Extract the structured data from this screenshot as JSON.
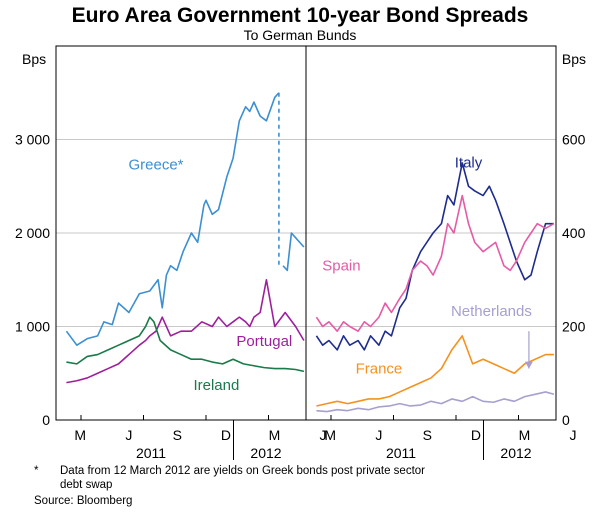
{
  "chart_data": {
    "title": "Euro Area Government 10-year Bond Spreads",
    "subtitle": "To German Bunds",
    "footnote_marker": "*",
    "footnote_line1": "Data from 12 March 2012 are yields on Greek bonds post private sector",
    "footnote_line2": "debt swap",
    "source": "Source: Bloomberg",
    "x_months": [
      "M",
      "J",
      "S",
      "D",
      "M",
      "J"
    ],
    "x_years": [
      "2011",
      "2012"
    ],
    "panels": [
      {
        "type": "line",
        "unit": "Bps",
        "ylim": [
          0,
          4000
        ],
        "yticks": [
          0,
          1000,
          2000,
          3000
        ],
        "ytick_labels": [
          "0",
          "1 000",
          "2 000",
          "3 000"
        ],
        "series": [
          {
            "name": "Greece*",
            "color": "#3c8fd2",
            "dash_after_x": 12.2,
            "dash_end_x": 12.4,
            "x": [
              2.0,
              2.5,
              3.0,
              3.5,
              3.8,
              4.2,
              4.5,
              5.0,
              5.5,
              6.0,
              6.4,
              6.6,
              6.8,
              7.0,
              7.3,
              7.6,
              8.0,
              8.3,
              8.6,
              8.7,
              9.0,
              9.3,
              9.7,
              10.0,
              10.3,
              10.6,
              10.8,
              11.0,
              11.3,
              11.6,
              12.0,
              12.2,
              12.4,
              12.6,
              12.8,
              13.0,
              13.2,
              13.4
            ],
            "y": [
              950,
              800,
              870,
              900,
              1050,
              1020,
              1250,
              1150,
              1350,
              1380,
              1500,
              1200,
              1550,
              1650,
              1600,
              1800,
              2000,
              1900,
              2300,
              2350,
              2200,
              2250,
              2600,
              2800,
              3200,
              3350,
              3300,
              3400,
              3250,
              3200,
              3450,
              3500,
              1650,
              1600,
              2000,
              1950,
              1900,
              1850
            ]
          },
          {
            "name": "Portugal",
            "color": "#9e1f9c",
            "x": [
              2.0,
              2.5,
              3.0,
              3.5,
              4.0,
              4.5,
              5.0,
              5.5,
              5.8,
              6.0,
              6.3,
              6.6,
              7.0,
              7.5,
              8.0,
              8.5,
              9.0,
              9.3,
              9.7,
              10.0,
              10.3,
              10.6,
              10.8,
              11.0,
              11.3,
              11.6,
              12.0,
              12.5,
              13.0,
              13.4
            ],
            "y": [
              400,
              420,
              450,
              500,
              550,
              600,
              700,
              800,
              850,
              900,
              950,
              1100,
              900,
              950,
              950,
              1050,
              1000,
              1100,
              1000,
              1050,
              1100,
              1050,
              1000,
              1100,
              1150,
              1500,
              1000,
              1150,
              1000,
              850
            ]
          },
          {
            "name": "Ireland",
            "color": "#1a7a4a",
            "x": [
              2.0,
              2.5,
              3.0,
              3.5,
              4.0,
              4.5,
              5.0,
              5.5,
              5.8,
              6.0,
              6.2,
              6.5,
              7.0,
              7.5,
              8.0,
              8.5,
              9.0,
              9.5,
              10.0,
              10.5,
              11.0,
              11.5,
              12.0,
              12.5,
              13.0,
              13.4
            ],
            "y": [
              620,
              600,
              680,
              700,
              750,
              800,
              850,
              900,
              1000,
              1100,
              1050,
              850,
              750,
              700,
              650,
              650,
              620,
              600,
              650,
              600,
              580,
              560,
              550,
              550,
              540,
              520
            ]
          }
        ],
        "labels": [
          {
            "text": "Greece*",
            "color": "#3c8fd2",
            "x": 6.3,
            "y": 2680
          },
          {
            "text": "Portugal",
            "color": "#9e1f9c",
            "x": 11.5,
            "y": 790
          },
          {
            "text": "Ireland",
            "color": "#1a7a4a",
            "x": 9.2,
            "y": 320
          }
        ]
      },
      {
        "type": "line",
        "unit": "Bps",
        "ylim": [
          0,
          800
        ],
        "yticks": [
          0,
          200,
          400,
          600
        ],
        "ytick_labels": [
          "0",
          "200",
          "400",
          "600"
        ],
        "series": [
          {
            "name": "Italy",
            "color": "#1d2c8e",
            "x": [
              2.0,
              2.3,
              2.6,
              3.0,
              3.3,
              3.6,
              4.0,
              4.3,
              4.6,
              5.0,
              5.3,
              5.6,
              6.0,
              6.3,
              6.6,
              7.0,
              7.3,
              7.6,
              8.0,
              8.3,
              8.6,
              9.0,
              9.3,
              9.6,
              10.0,
              10.3,
              10.6,
              11.0,
              11.3,
              11.6,
              12.0,
              12.3,
              12.6,
              13.0,
              13.4
            ],
            "y": [
              180,
              160,
              170,
              150,
              180,
              160,
              170,
              150,
              180,
              160,
              190,
              180,
              240,
              260,
              320,
              360,
              380,
              400,
              420,
              480,
              460,
              550,
              500,
              490,
              480,
              500,
              470,
              420,
              380,
              340,
              300,
              310,
              360,
              420,
              420
            ]
          },
          {
            "name": "Spain",
            "color": "#e75aa6",
            "x": [
              2.0,
              2.3,
              2.6,
              3.0,
              3.3,
              3.6,
              4.0,
              4.3,
              4.6,
              5.0,
              5.3,
              5.6,
              6.0,
              6.3,
              6.6,
              7.0,
              7.3,
              7.6,
              8.0,
              8.3,
              8.6,
              9.0,
              9.3,
              9.6,
              10.0,
              10.3,
              10.6,
              11.0,
              11.3,
              11.6,
              12.0,
              12.3,
              12.6,
              13.0,
              13.4
            ],
            "y": [
              220,
              200,
              210,
              190,
              210,
              200,
              190,
              210,
              200,
              220,
              250,
              230,
              260,
              280,
              320,
              340,
              330,
              310,
              350,
              420,
              400,
              480,
              420,
              380,
              360,
              370,
              380,
              330,
              320,
              340,
              380,
              400,
              420,
              410,
              420
            ]
          },
          {
            "name": "France",
            "color": "#f5921e",
            "x": [
              2.0,
              2.5,
              3.0,
              3.5,
              4.0,
              4.5,
              5.0,
              5.5,
              6.0,
              6.5,
              7.0,
              7.5,
              8.0,
              8.5,
              9.0,
              9.5,
              10.0,
              10.5,
              11.0,
              11.5,
              12.0,
              12.5,
              13.0,
              13.4
            ],
            "y": [
              30,
              35,
              40,
              35,
              40,
              45,
              45,
              50,
              60,
              70,
              80,
              90,
              110,
              150,
              180,
              120,
              130,
              120,
              110,
              100,
              120,
              130,
              140,
              140
            ]
          },
          {
            "name": "Netherlands",
            "color": "#a6a0d0",
            "x": [
              2.0,
              2.5,
              3.0,
              3.5,
              4.0,
              4.5,
              5.0,
              5.5,
              6.0,
              6.5,
              7.0,
              7.5,
              8.0,
              8.5,
              9.0,
              9.5,
              10.0,
              10.5,
              11.0,
              11.5,
              12.0,
              12.5,
              13.0,
              13.4
            ],
            "y": [
              20,
              18,
              22,
              20,
              25,
              22,
              28,
              30,
              35,
              30,
              32,
              40,
              35,
              45,
              40,
              50,
              40,
              38,
              45,
              40,
              50,
              55,
              60,
              55
            ]
          }
        ],
        "labels": [
          {
            "text": "Italy",
            "color": "#1d2c8e",
            "x": 9.3,
            "y": 540
          },
          {
            "text": "Spain",
            "color": "#e75aa6",
            "x": 3.2,
            "y": 320
          },
          {
            "text": "France",
            "color": "#f5921e",
            "x": 5.0,
            "y": 100
          },
          {
            "text": "Netherlands",
            "color": "#a6a0d0",
            "x": 10.4,
            "y": 222
          }
        ],
        "arrow": {
          "color": "#a6a0d0",
          "x": 12.2,
          "from_y": 190,
          "to_y": 110
        }
      }
    ]
  }
}
